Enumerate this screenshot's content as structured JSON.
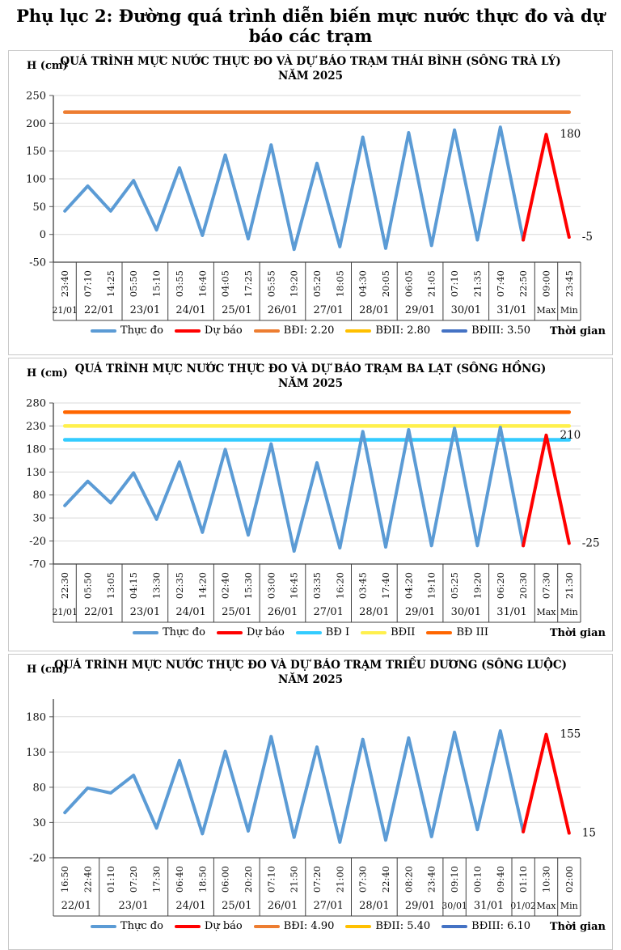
{
  "page_title": "Phụ lục 2: Đường quá trình diễn biến mực nước thực đo và dự báo các trạm",
  "chart_data": [
    {
      "type": "line",
      "title": "QUÁ TRÌNH MỰC NƯỚC THỰC ĐO VÀ DỰ BÁO TRẠM THÁI BÌNH (SÔNG TRÀ LÝ)",
      "subtitle": "NĂM 2025",
      "y_axis_label": "H (cm)",
      "x_axis_label": "Thời gian",
      "ylim": [
        -50,
        250
      ],
      "yticks": [
        250,
        200,
        150,
        100,
        50,
        0,
        -50
      ],
      "times": [
        "23:40",
        "07:10",
        "14:25",
        "05:50",
        "15:10",
        "03:55",
        "16:40",
        "04:05",
        "17:25",
        "05:55",
        "19:20",
        "05:20",
        "18:05",
        "04:30",
        "20:05",
        "06:05",
        "21:05",
        "07:10",
        "21:35",
        "07:40",
        "22:50",
        "09:00",
        "23:45"
      ],
      "date_groups": [
        {
          "label": "21/01",
          "span": 1
        },
        {
          "label": "22/01",
          "span": 2
        },
        {
          "label": "23/01",
          "span": 2
        },
        {
          "label": "24/01",
          "span": 2
        },
        {
          "label": "25/01",
          "span": 2
        },
        {
          "label": "26/01",
          "span": 2
        },
        {
          "label": "27/01",
          "span": 2
        },
        {
          "label": "28/01",
          "span": 2
        },
        {
          "label": "29/01",
          "span": 2
        },
        {
          "label": "30/01",
          "span": 2
        },
        {
          "label": "31/01",
          "span": 2
        },
        {
          "label": "Max",
          "span": 1
        },
        {
          "label": "Min",
          "span": 1
        }
      ],
      "series": [
        {
          "name": "Thực đo",
          "color": "#5B9BD5",
          "values": [
            42,
            87,
            42,
            97,
            8,
            120,
            -2,
            143,
            -8,
            161,
            -27,
            128,
            -22,
            175,
            -25,
            183,
            -20,
            188,
            -10,
            193,
            -10
          ]
        },
        {
          "name": "Dự báo",
          "color": "#FF0000",
          "values": [
            180,
            -5
          ]
        }
      ],
      "thresholds": [
        {
          "name": "BĐI: 2.20",
          "value": 220,
          "color": "#ED7D31"
        },
        {
          "name": "BĐII: 2.80",
          "value": 280,
          "color": "#FFC000"
        },
        {
          "name": "BĐIII: 3.50",
          "value": 350,
          "color": "#4472C4"
        }
      ],
      "annotations": [
        {
          "text": "180"
        },
        {
          "text": "-5"
        }
      ]
    },
    {
      "type": "line",
      "title": "QUÁ TRÌNH MỰC NƯỚC THỰC ĐO VÀ DỰ BÁO TRẠM BA LẠT (SÔNG HỒNG)",
      "subtitle": "NĂM 2025",
      "y_axis_label": "H (cm)",
      "x_axis_label": "Thời gian",
      "ylim": [
        -70,
        280
      ],
      "yticks": [
        280,
        230,
        180,
        130,
        80,
        30,
        -20,
        -70
      ],
      "times": [
        "22:30",
        "05:50",
        "13:05",
        "04:15",
        "13:30",
        "02:35",
        "14:20",
        "02:40",
        "15:30",
        "03:00",
        "16:45",
        "03:35",
        "16:20",
        "03:45",
        "17:40",
        "04:20",
        "19:10",
        "05:25",
        "19:20",
        "06:20",
        "20:30",
        "07:30",
        "21:30"
      ],
      "date_groups": [
        {
          "label": "21/01",
          "span": 1
        },
        {
          "label": "22/01",
          "span": 2
        },
        {
          "label": "23/01",
          "span": 2
        },
        {
          "label": "24/01",
          "span": 2
        },
        {
          "label": "25/01",
          "span": 2
        },
        {
          "label": "26/01",
          "span": 2
        },
        {
          "label": "27/01",
          "span": 2
        },
        {
          "label": "28/01",
          "span": 2
        },
        {
          "label": "29/01",
          "span": 2
        },
        {
          "label": "30/01",
          "span": 2
        },
        {
          "label": "31/01",
          "span": 2
        },
        {
          "label": "Max",
          "span": 1
        },
        {
          "label": "Min",
          "span": 1
        }
      ],
      "series": [
        {
          "name": "Thực đo",
          "color": "#5B9BD5",
          "values": [
            57,
            110,
            63,
            128,
            27,
            152,
            -1,
            179,
            -7,
            191,
            -42,
            150,
            -35,
            218,
            -33,
            222,
            -30,
            225,
            -30,
            227,
            -30
          ]
        },
        {
          "name": "Dự báo",
          "color": "#FF0000",
          "values": [
            210,
            -25
          ]
        }
      ],
      "thresholds": [
        {
          "name": "BĐ I",
          "value": 200,
          "color": "#33CCFF"
        },
        {
          "name": "BĐII",
          "value": 230,
          "color": "#FFF04D"
        },
        {
          "name": "BĐ III",
          "value": 260,
          "color": "#FF6600"
        }
      ],
      "annotations": [
        {
          "text": "210"
        },
        {
          "text": "-25"
        }
      ]
    },
    {
      "type": "line",
      "title": "QUÁ TRÌNH MỰC NƯỚC THỰC ĐO VÀ DỰ BÁO TRẠM TRIỀU DƯƠNG (SÔNG LUỘC)",
      "subtitle": "NĂM 2025",
      "y_axis_label": "H (cm)",
      "x_axis_label": "Thời gian",
      "ylim": [
        -20,
        205
      ],
      "yticks": [
        180,
        130,
        80,
        30,
        -20
      ],
      "times": [
        "16:50",
        "22:40",
        "01:10",
        "07:20",
        "17:30",
        "06:40",
        "18:50",
        "06:00",
        "20:20",
        "07:10",
        "21:50",
        "07:20",
        "21:00",
        "07:30",
        "22:40",
        "08:20",
        "23:40",
        "09:10",
        "00:10",
        "09:40",
        "01:10",
        "10:30",
        "02:00"
      ],
      "date_groups": [
        {
          "label": "22/01",
          "span": 2
        },
        {
          "label": "23/01",
          "span": 3
        },
        {
          "label": "24/01",
          "span": 2
        },
        {
          "label": "25/01",
          "span": 2
        },
        {
          "label": "26/01",
          "span": 2
        },
        {
          "label": "27/01",
          "span": 2
        },
        {
          "label": "28/01",
          "span": 2
        },
        {
          "label": "29/01",
          "span": 2
        },
        {
          "label": "30/01",
          "span": 1
        },
        {
          "label": "31/01",
          "span": 2
        },
        {
          "label": "01/02",
          "span": 1
        },
        {
          "label": "Max",
          "span": 1
        },
        {
          "label": "Min",
          "span": 1
        }
      ],
      "series": [
        {
          "name": "Thực đo",
          "color": "#5B9BD5",
          "values": [
            44,
            79,
            72,
            97,
            22,
            118,
            14,
            131,
            18,
            152,
            9,
            137,
            2,
            148,
            5,
            150,
            10,
            158,
            20,
            160,
            17
          ]
        },
        {
          "name": "Dự báo",
          "color": "#FF0000",
          "values": [
            155,
            15
          ]
        }
      ],
      "thresholds": [
        {
          "name": "BĐI: 4.90",
          "value": 490,
          "color": "#ED7D31"
        },
        {
          "name": "BĐII: 5.40",
          "value": 540,
          "color": "#FFC000"
        },
        {
          "name": "BĐIII: 6.10",
          "value": 610,
          "color": "#4472C4"
        }
      ],
      "annotations": [
        {
          "text": "155"
        },
        {
          "text": "15"
        }
      ]
    }
  ]
}
